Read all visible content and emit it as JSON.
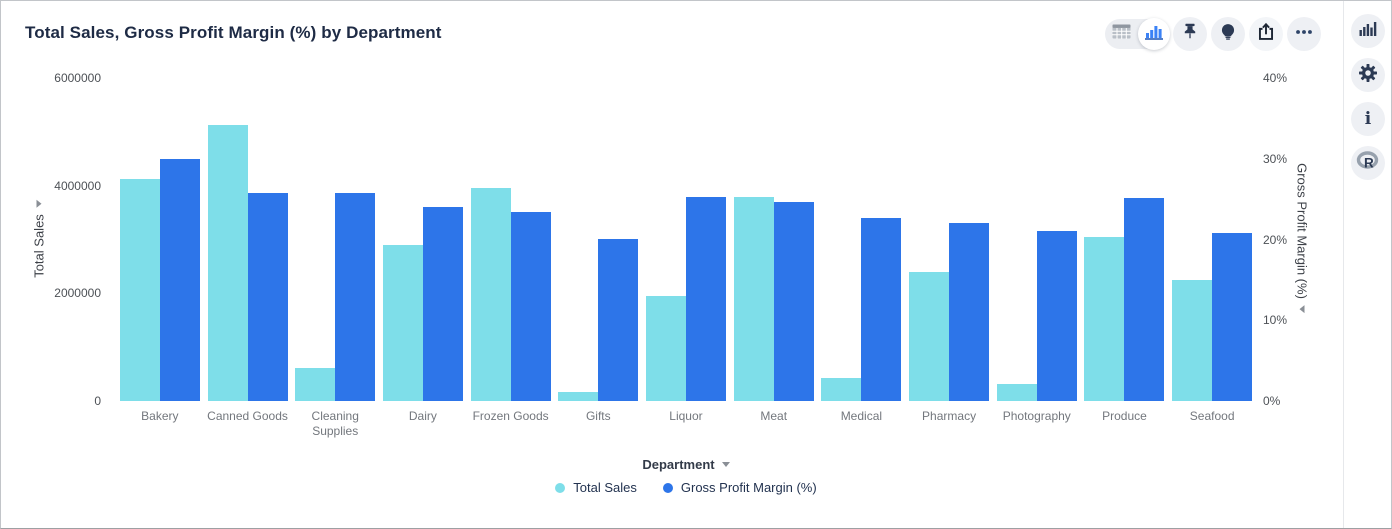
{
  "header": {
    "title": "Total Sales, Gross Profit Margin (%) by Department"
  },
  "toolbar": {
    "view_toggle": {
      "options": [
        "table-view",
        "chart-view"
      ],
      "selected": "chart-view"
    },
    "buttons": [
      "pin",
      "insights",
      "share",
      "more-options"
    ]
  },
  "side_rail": {
    "buttons": [
      "charts",
      "settings",
      "info",
      "r-analytics"
    ]
  },
  "colors": {
    "series_total_sales": "#7edee9",
    "series_gross_profit_margin": "#2d75e9",
    "icon_navy": "#2c3a54",
    "accent_blue": "#3b82f6"
  },
  "chart_data": {
    "type": "bar",
    "title": "Total Sales, Gross Profit Margin (%) by Department",
    "categories": [
      "Bakery",
      "Canned Goods",
      "Cleaning Supplies",
      "Dairy",
      "Frozen Goods",
      "Gifts",
      "Liquor",
      "Meat",
      "Medical",
      "Pharmacy",
      "Photography",
      "Produce",
      "Seafood"
    ],
    "series": [
      {
        "name": "Total Sales",
        "axis": "left",
        "color": "#7edee9",
        "values": [
          4120000,
          5130000,
          620000,
          2900000,
          3960000,
          170000,
          1960000,
          3790000,
          420000,
          2400000,
          320000,
          3040000,
          2250000
        ]
      },
      {
        "name": "Gross Profit Margin (%)",
        "axis": "right",
        "color": "#2d75e9",
        "values": [
          30.0,
          25.8,
          25.7,
          24.0,
          23.4,
          20.1,
          25.3,
          24.6,
          22.7,
          22.1,
          21.0,
          25.1,
          20.8
        ]
      }
    ],
    "left_axis": {
      "label": "Total Sales",
      "min": 0,
      "max": 6000000,
      "ticks": [
        0,
        2000000,
        4000000,
        6000000
      ],
      "tick_labels": [
        "0",
        "2000000",
        "4000000",
        "6000000"
      ]
    },
    "right_axis": {
      "label": "Gross Profit Margin (%)",
      "min": 0,
      "max": 40,
      "ticks": [
        0,
        10,
        20,
        30,
        40
      ],
      "tick_labels": [
        "0%",
        "10%",
        "20%",
        "30%",
        "40%"
      ]
    },
    "xlabel": "Department",
    "legend": [
      "Total Sales",
      "Gross Profit Margin (%)"
    ],
    "legend_position": "bottom",
    "grid": false
  }
}
